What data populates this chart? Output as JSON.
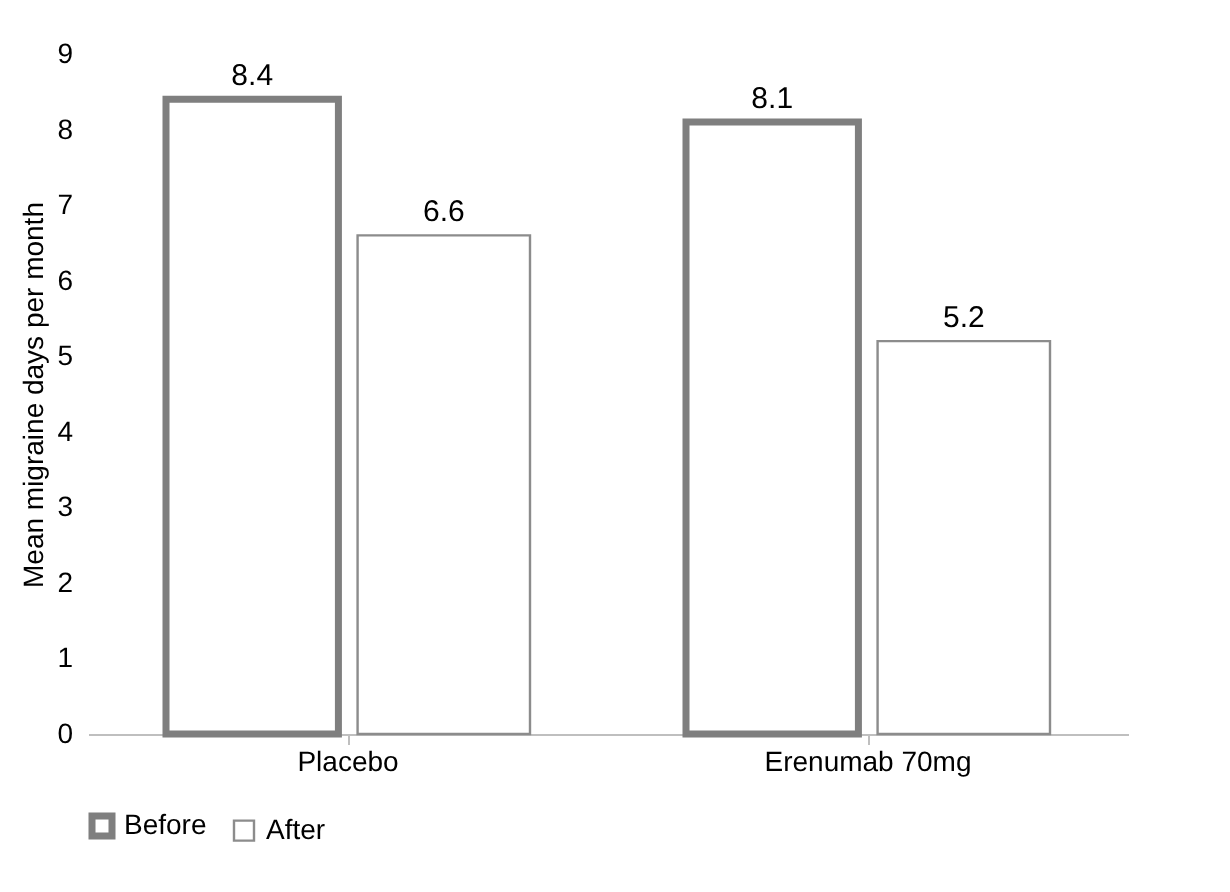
{
  "chart_data": {
    "type": "bar",
    "ylabel": "Mean migraine days per month",
    "categories": [
      "Placebo",
      "Erenumab 70mg"
    ],
    "series": [
      {
        "name": "Before",
        "color": "#7f7f7f",
        "values": [
          8.4,
          8.1
        ]
      },
      {
        "name": "After",
        "color": "#8c8c8c",
        "values": [
          6.6,
          5.2
        ]
      }
    ],
    "ylim": [
      0,
      9
    ],
    "yticks": [
      0,
      1,
      2,
      3,
      4,
      5,
      6,
      7,
      8,
      9
    ],
    "grid": false,
    "legend": "bottom",
    "data_labels": true
  }
}
